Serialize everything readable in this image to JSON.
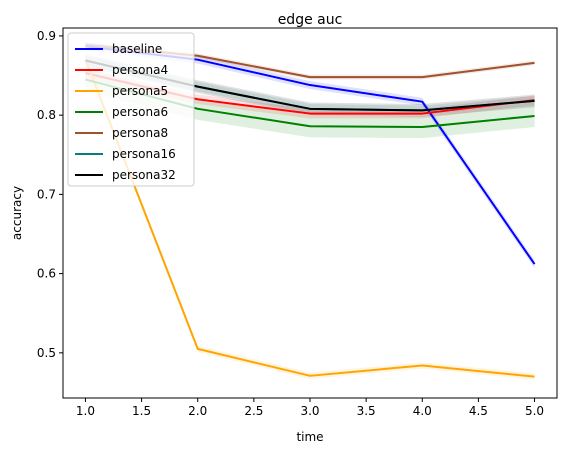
{
  "chart_data": {
    "type": "line",
    "title": "edge auc",
    "xlabel": "time",
    "ylabel": "accuracy",
    "x": [
      1.0,
      2.0,
      3.0,
      4.0,
      5.0
    ],
    "xlim": [
      0.8,
      5.2
    ],
    "ylim": [
      0.443,
      0.91
    ],
    "xticks": [
      1.0,
      1.5,
      2.0,
      2.5,
      3.0,
      3.5,
      4.0,
      4.5,
      5.0
    ],
    "xtick_labels": [
      "1.0",
      "1.5",
      "2.0",
      "2.5",
      "3.0",
      "3.5",
      "4.0",
      "4.5",
      "5.0"
    ],
    "yticks": [
      0.5,
      0.6,
      0.7,
      0.8,
      0.9
    ],
    "ytick_labels": [
      "0.5",
      "0.6",
      "0.7",
      "0.8",
      "0.9"
    ],
    "grid": false,
    "legend_position": "upper-left",
    "series": [
      {
        "name": "baseline",
        "color": "#0000ff",
        "values": [
          0.887,
          0.87,
          0.838,
          0.817,
          0.612
        ],
        "band": 0.005
      },
      {
        "name": "persona4",
        "color": "#ff0000",
        "values": [
          0.853,
          0.82,
          0.802,
          0.802,
          0.819
        ],
        "band": 0.006
      },
      {
        "name": "persona5",
        "color": "#ffa500",
        "values": [
          0.87,
          0.505,
          0.471,
          0.484,
          0.47
        ],
        "band": 0.004
      },
      {
        "name": "persona6",
        "color": "#008000",
        "values": [
          0.845,
          0.808,
          0.786,
          0.785,
          0.799
        ],
        "band": 0.014
      },
      {
        "name": "persona8",
        "color": "#a0522d",
        "values": [
          0.889,
          0.875,
          0.848,
          0.848,
          0.866
        ],
        "band": 0.003
      },
      {
        "name": "persona16",
        "color": "#008080",
        "values": [
          0.869,
          0.836,
          0.808,
          0.806,
          0.818
        ],
        "band": 0.006
      },
      {
        "name": "persona32",
        "color": "#000000",
        "values": [
          0.869,
          0.836,
          0.808,
          0.806,
          0.818
        ],
        "band": 0.008
      }
    ]
  }
}
